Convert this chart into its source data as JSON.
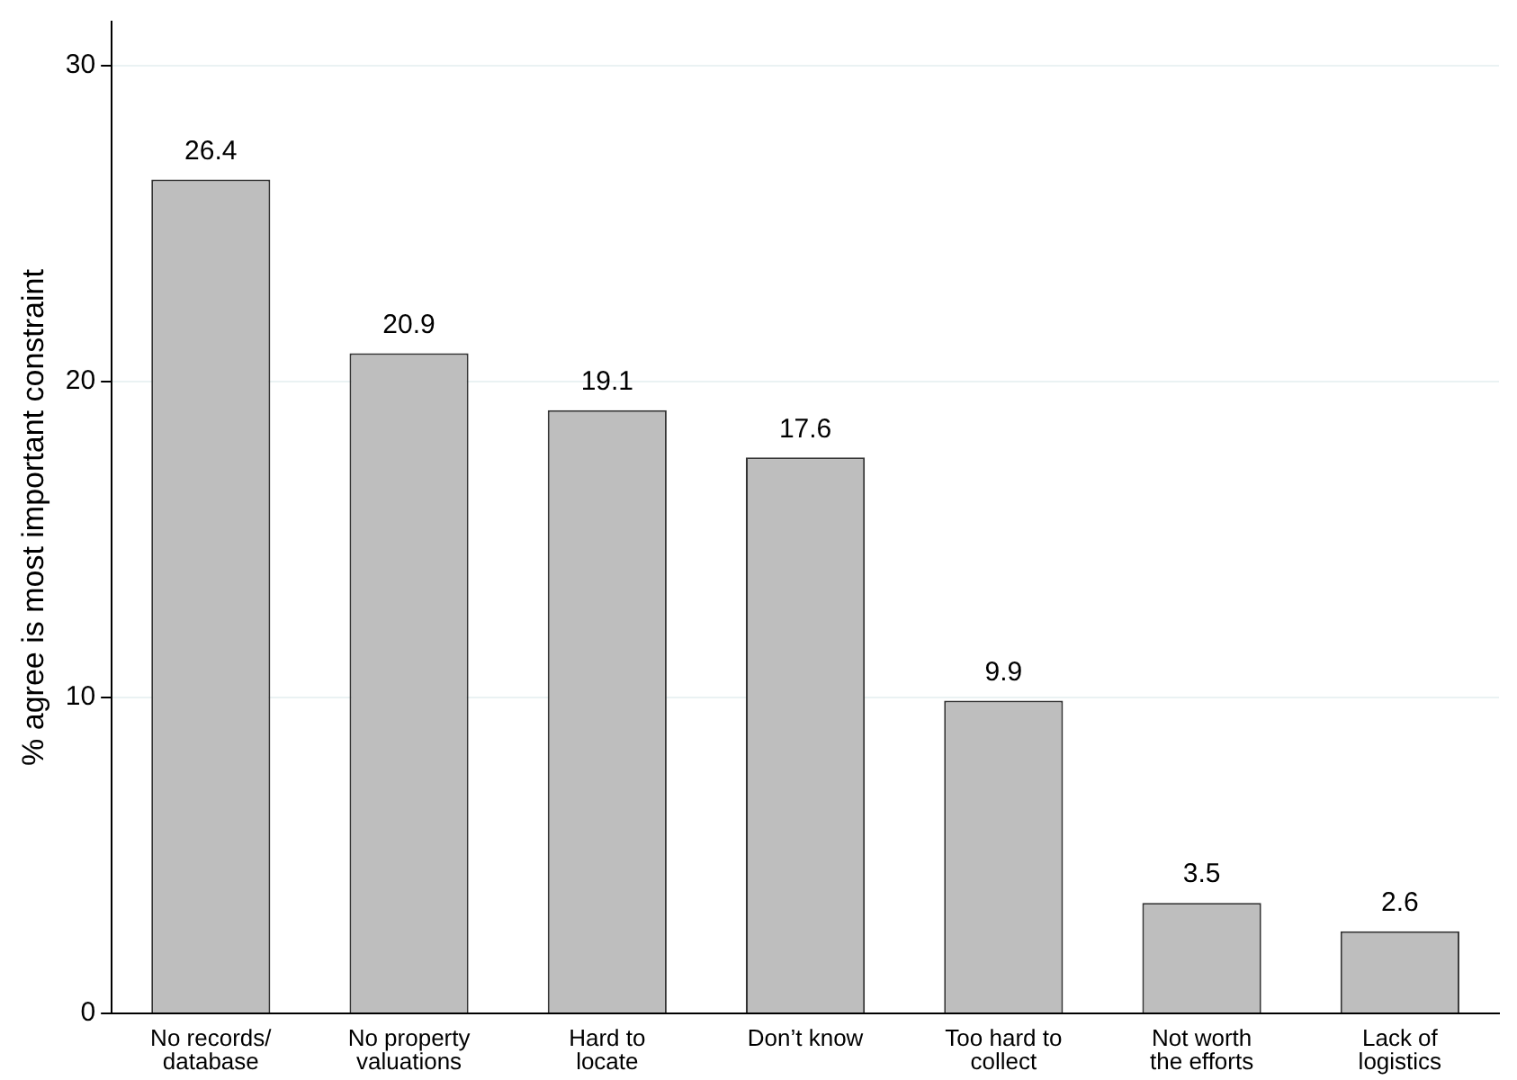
{
  "chart_data": {
    "type": "bar",
    "ylabel": "% agree is most important constraint",
    "categories": [
      "No records/ database",
      "No property valuations",
      "Hard to locate",
      "Don’t know",
      "Too hard to collect",
      "Not worth the efforts",
      "Lack of logistics"
    ],
    "values": [
      26.4,
      20.9,
      19.1,
      17.6,
      9.9,
      3.5,
      2.6
    ],
    "color": "#bebebe",
    "ylim": [
      0,
      31.4
    ],
    "yticks": [
      0,
      10,
      20,
      30
    ],
    "grid": "y",
    "data_labels": true
  }
}
